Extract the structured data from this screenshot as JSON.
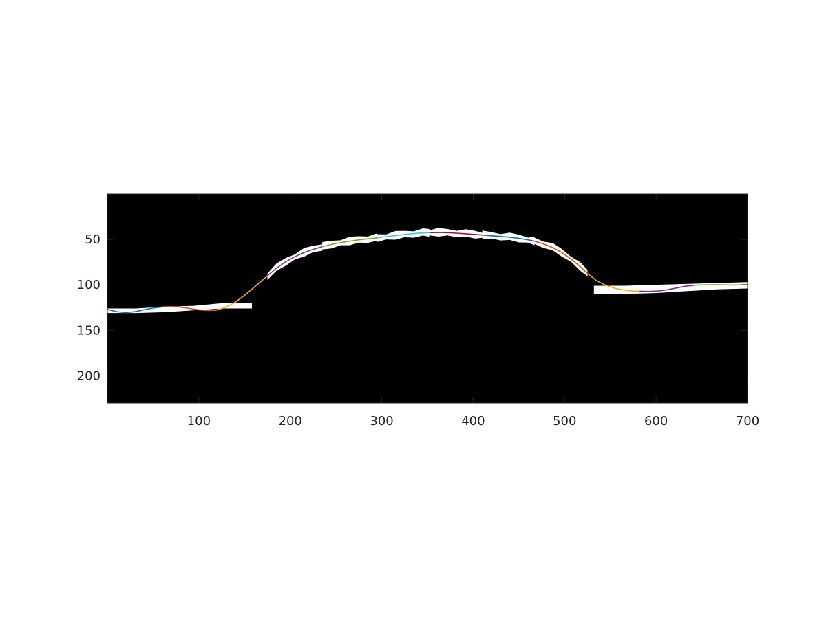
{
  "chart_data": {
    "type": "line",
    "title": "",
    "xlabel": "",
    "ylabel": "",
    "xlim": [
      0,
      700
    ],
    "ylim": [
      230,
      0
    ],
    "y_axis_reversed": true,
    "grid": false,
    "background_color": "#000000",
    "xticks": [
      100,
      200,
      300,
      400,
      500,
      600,
      700
    ],
    "yticks": [
      50,
      100,
      150,
      200
    ],
    "image_region_white": {
      "description_color": "#ffffff",
      "left_band": {
        "x": [
          0,
          158
        ],
        "y_top": [
          126,
          126,
          124,
          123,
          120,
          120
        ],
        "y_bottom": [
          131,
          131,
          130,
          128,
          126,
          126
        ]
      },
      "right_band": {
        "x": [
          532,
          700
        ],
        "y_top": [
          101,
          101,
          100,
          99,
          98,
          97
        ],
        "y_bottom": [
          110,
          110,
          109,
          107,
          105,
          104
        ]
      }
    },
    "series": [
      {
        "color": "#0072bd",
        "x": [
          0,
          10,
          20,
          30,
          40,
          50,
          60
        ],
        "y": [
          127,
          129.5,
          130.5,
          129.5,
          127.5,
          125.5,
          124.2
        ]
      },
      {
        "color": "#d95319",
        "x": [
          60,
          70,
          80,
          90,
          100,
          110,
          118
        ],
        "y": [
          124.2,
          123.8,
          124.5,
          126,
          127.5,
          128.2,
          128
        ]
      },
      {
        "color": "#edb120",
        "x": [
          118,
          130,
          140,
          150,
          160,
          170,
          175
        ],
        "y": [
          128,
          124.5,
          119,
          111.5,
          103,
          94.5,
          90
        ]
      },
      {
        "color": "#7e2f8e",
        "x": [
          175,
          185,
          195,
          205,
          215,
          225,
          235
        ],
        "y": [
          90,
          81.5,
          74.5,
          69,
          64.5,
          61,
          58
        ]
      },
      {
        "color": "#77ac30",
        "x": [
          235,
          245,
          255,
          265,
          275,
          285,
          295
        ],
        "y": [
          58,
          55.5,
          53.5,
          52,
          50.5,
          49.3,
          48.3
        ]
      },
      {
        "color": "#4dbeee",
        "x": [
          295,
          305,
          315,
          325,
          335,
          345,
          352
        ],
        "y": [
          48.3,
          47,
          45.8,
          44.6,
          43.6,
          42.8,
          42.5
        ]
      },
      {
        "color": "#a2142f",
        "x": [
          352,
          362,
          372,
          382,
          392,
          402,
          410
        ],
        "y": [
          42.5,
          42.4,
          42.6,
          43.1,
          43.8,
          44.6,
          45.2
        ]
      },
      {
        "color": "#0072bd",
        "x": [
          410,
          420,
          430,
          440,
          450,
          460,
          467
        ],
        "y": [
          45.2,
          46,
          46.7,
          47.6,
          48.8,
          50.5,
          52
        ]
      },
      {
        "color": "#d95319",
        "x": [
          467,
          477,
          487,
          497,
          507,
          517,
          525
        ],
        "y": [
          52,
          55,
          59,
          64.5,
          71.5,
          80,
          87.5
        ]
      },
      {
        "color": "#edb120",
        "x": [
          525,
          535,
          545,
          555,
          565,
          575,
          582
        ],
        "y": [
          87.5,
          95.5,
          100.5,
          103.8,
          105.8,
          106.8,
          107
        ]
      },
      {
        "color": "#7e2f8e",
        "x": [
          582,
          592,
          602,
          612,
          622,
          632,
          642
        ],
        "y": [
          107,
          107.2,
          106.8,
          105.5,
          103.5,
          101.5,
          100.5
        ]
      },
      {
        "color": "#77ac30",
        "x": [
          642,
          652,
          662,
          672,
          682,
          692,
          700
        ],
        "y": [
          100.5,
          100,
          99.8,
          99.9,
          100.2,
          100,
          99.5
        ]
      }
    ]
  }
}
